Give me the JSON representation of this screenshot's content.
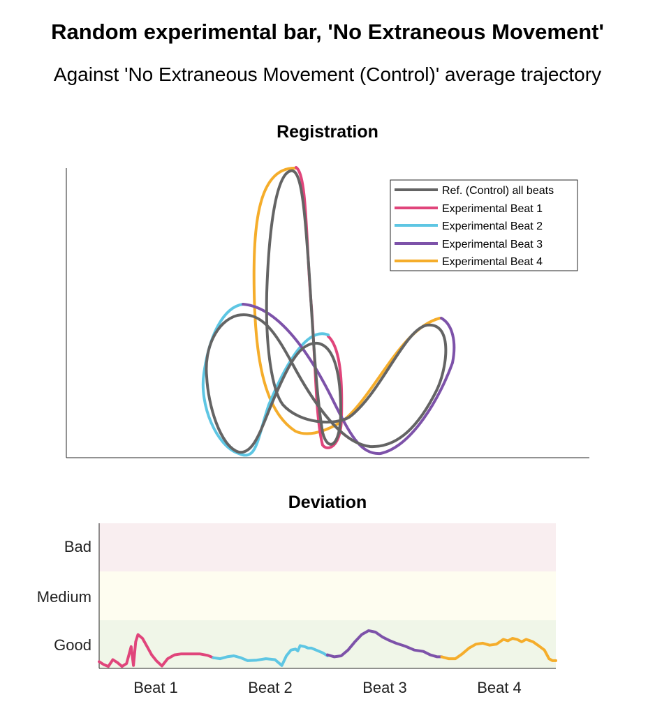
{
  "figure": {
    "title": "Random experimental bar, 'No Extraneous Movement'",
    "subtitle": "Against 'No Extraneous Movement (Control)' average trajectory"
  },
  "colors": {
    "reference": "#646464",
    "beat1": "#e0457b",
    "beat2": "#5ec6e3",
    "beat3": "#7d52a9",
    "beat4": "#f5ad2b",
    "band_bad": "#f9eef0",
    "band_medium": "#fefdf0",
    "band_good": "#f0f6e8"
  },
  "chart_data": [
    {
      "type": "line",
      "title": "Registration",
      "xlabel": "",
      "ylabel": "",
      "axis_ticks": false,
      "grid": false,
      "legend_position": "top-right",
      "series": [
        {
          "name": "Ref. (Control) all beats",
          "color_key": "reference"
        },
        {
          "name": "Experimental Beat 1",
          "color_key": "beat1"
        },
        {
          "name": "Experimental Beat 2",
          "color_key": "beat2"
        },
        {
          "name": "Experimental Beat 3",
          "color_key": "beat3"
        },
        {
          "name": "Experimental Beat 4",
          "color_key": "beat4"
        }
      ]
    },
    {
      "type": "line",
      "title": "Deviation",
      "categories": [
        "Beat 1",
        "Beat 2",
        "Beat 3",
        "Beat 4"
      ],
      "y_bands": [
        "Good",
        "Medium",
        "Bad"
      ],
      "ylim": [
        0,
        3
      ],
      "x_range": [
        0,
        4
      ],
      "series": [
        {
          "name": "Experimental Beat 1",
          "color_key": "beat1",
          "x": [
            0.0,
            0.04,
            0.08,
            0.12,
            0.16,
            0.2,
            0.24,
            0.28,
            0.3,
            0.32,
            0.34,
            0.38,
            0.42,
            0.46,
            0.5,
            0.55,
            0.6,
            0.66,
            0.72,
            0.8,
            0.88,
            0.95,
            1.0
          ],
          "y": [
            0.14,
            0.08,
            0.04,
            0.18,
            0.12,
            0.04,
            0.1,
            0.45,
            0.06,
            0.55,
            0.7,
            0.62,
            0.45,
            0.28,
            0.16,
            0.05,
            0.2,
            0.28,
            0.3,
            0.3,
            0.3,
            0.27,
            0.22
          ]
        },
        {
          "name": "Experimental Beat 2",
          "color_key": "beat2",
          "x": [
            1.0,
            1.06,
            1.12,
            1.18,
            1.24,
            1.3,
            1.38,
            1.46,
            1.54,
            1.6,
            1.64,
            1.68,
            1.72,
            1.74,
            1.76,
            1.8,
            1.83,
            1.86,
            1.9,
            1.96,
            2.0
          ],
          "y": [
            0.22,
            0.2,
            0.24,
            0.26,
            0.22,
            0.16,
            0.17,
            0.2,
            0.18,
            0.06,
            0.26,
            0.38,
            0.4,
            0.36,
            0.47,
            0.45,
            0.42,
            0.42,
            0.38,
            0.32,
            0.26
          ]
        },
        {
          "name": "Experimental Beat 3",
          "color_key": "beat3",
          "x": [
            2.0,
            2.06,
            2.12,
            2.18,
            2.24,
            2.3,
            2.36,
            2.42,
            2.48,
            2.54,
            2.6,
            2.68,
            2.76,
            2.84,
            2.9,
            2.96,
            3.0
          ],
          "y": [
            0.28,
            0.24,
            0.26,
            0.38,
            0.55,
            0.7,
            0.78,
            0.75,
            0.65,
            0.58,
            0.52,
            0.46,
            0.38,
            0.35,
            0.28,
            0.24,
            0.24
          ]
        },
        {
          "name": "Experimental Beat 4",
          "color_key": "beat4",
          "x": [
            3.0,
            3.06,
            3.12,
            3.18,
            3.24,
            3.3,
            3.36,
            3.42,
            3.48,
            3.54,
            3.58,
            3.62,
            3.66,
            3.7,
            3.74,
            3.8,
            3.86,
            3.9,
            3.94,
            3.97,
            4.0
          ],
          "y": [
            0.24,
            0.2,
            0.2,
            0.3,
            0.42,
            0.5,
            0.52,
            0.48,
            0.5,
            0.6,
            0.57,
            0.62,
            0.6,
            0.55,
            0.6,
            0.55,
            0.45,
            0.38,
            0.2,
            0.16,
            0.16
          ]
        }
      ]
    }
  ]
}
